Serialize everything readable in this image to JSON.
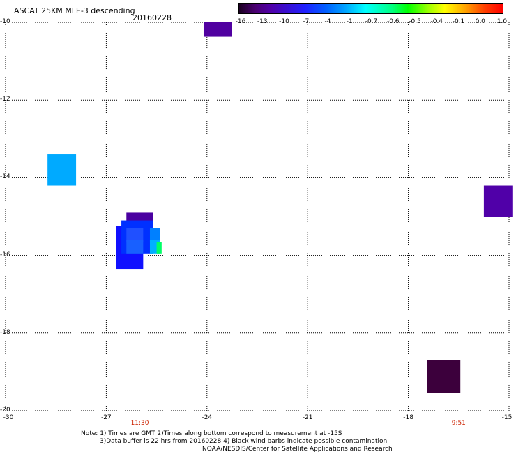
{
  "header": {
    "title": "ASCAT 25KM MLE-3 descending",
    "date": "20160228"
  },
  "colorbar": {
    "labels": [
      "-16",
      "-13",
      "-10",
      "-7",
      "-4",
      "-1",
      "-0.7",
      "-0.6",
      "-0.5",
      "-0.4",
      "-0.1",
      "0.0",
      "1.0"
    ]
  },
  "axes": {
    "x_ticks": [
      "-30",
      "-27",
      "-24",
      "-21",
      "-18",
      "-15"
    ],
    "y_ticks": [
      "-10",
      "-12",
      "-14",
      "-16",
      "-18",
      "-20"
    ],
    "x_range": [
      -30,
      -15
    ],
    "y_range": [
      -20,
      -10
    ],
    "grid": "dotted"
  },
  "times": [
    {
      "label": "11:30",
      "lon": -26.0
    },
    {
      "label": "9:51",
      "lon": -16.5
    }
  ],
  "footer": {
    "note_line1": "Note: 1) Times are GMT 2)Times along bottom correspond to measurement at -15S",
    "note_line2": "3)Data buffer is 22 hrs from 20160228 4) Black wind barbs indicate possible contamination",
    "credit": "NOAA/NESDIS/Center for Satellite Applications and Research"
  },
  "colors": {
    "dark_purple": "#3c003c",
    "purple": "#5000a8",
    "blue": "#1010ff",
    "mid_blue": "#2060ff",
    "light_blue": "#00aaff",
    "cyan_blue": "#00c0ff",
    "green": "#00ff66"
  },
  "cells": [
    {
      "lon": -28.75,
      "lat": -13.4,
      "w": 0.85,
      "h": 0.8,
      "color": "#00aaff"
    },
    {
      "lon": -24.1,
      "lat": -10.0,
      "w": 0.85,
      "h": 0.37,
      "color": "#5000a0"
    },
    {
      "lon": -15.75,
      "lat": -14.2,
      "w": 0.85,
      "h": 0.8,
      "color": "#5000a8"
    },
    {
      "lon": -17.45,
      "lat": -18.7,
      "w": 1.0,
      "h": 0.85,
      "color": "#3c003c"
    },
    {
      "lon": -26.4,
      "lat": -14.9,
      "w": 0.8,
      "h": 0.35,
      "color": "#4a00a0"
    },
    {
      "lon": -26.7,
      "lat": -15.25,
      "w": 0.8,
      "h": 1.1,
      "color": "#1010ff"
    },
    {
      "lon": -26.55,
      "lat": -15.1,
      "w": 0.95,
      "h": 0.85,
      "color": "#0030ff"
    },
    {
      "lon": -26.4,
      "lat": -15.3,
      "w": 0.5,
      "h": 0.35,
      "color": "#2050ff"
    },
    {
      "lon": -25.7,
      "lat": -15.3,
      "w": 0.3,
      "h": 0.35,
      "color": "#0080ff"
    },
    {
      "lon": -25.7,
      "lat": -15.6,
      "w": 0.3,
      "h": 0.35,
      "color": "#00b0ff"
    },
    {
      "lon": -25.5,
      "lat": -15.65,
      "w": 0.15,
      "h": 0.3,
      "color": "#00ff66"
    },
    {
      "lon": -26.4,
      "lat": -15.6,
      "w": 0.5,
      "h": 0.35,
      "color": "#1860ff"
    }
  ]
}
